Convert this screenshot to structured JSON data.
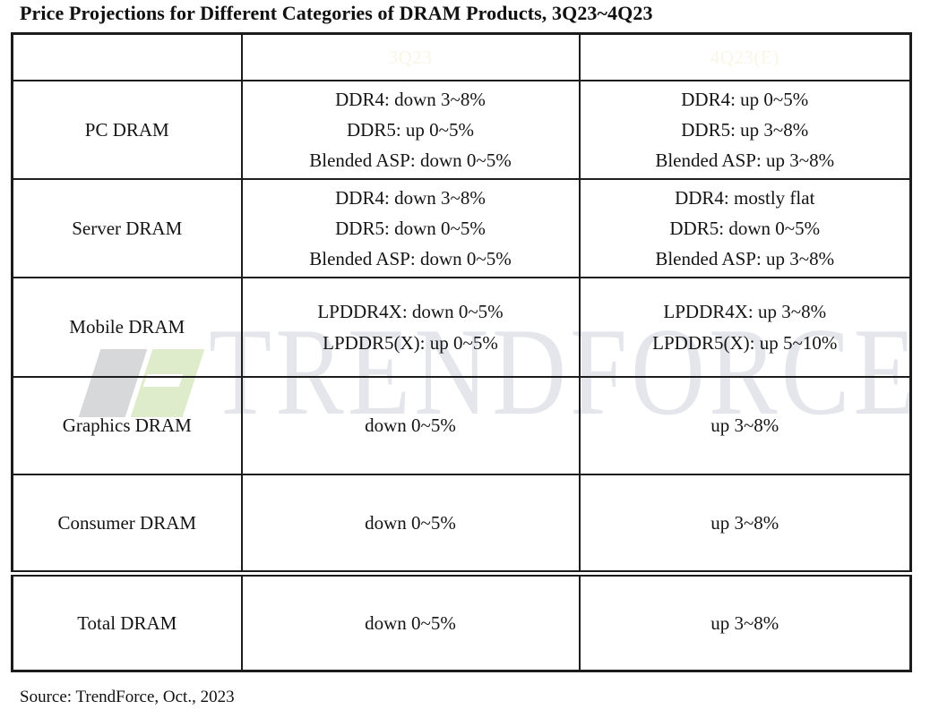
{
  "title": "Price Projections for Different Categories of DRAM Products, 3Q23~4Q23",
  "watermark": {
    "text": "TRENDFORCE",
    "logo": "trendforce-logo"
  },
  "colors": {
    "header_bg": "#76B629",
    "header_text": "#FAF6E6",
    "border": "#1C1C1C",
    "watermark_text": "#E4E6EC",
    "watermark_logo_green": "#DFECCB",
    "watermark_logo_gray": "#D7D8DA"
  },
  "chart_data": {
    "type": "table",
    "title": "Price Projections for Different Categories of DRAM Products, 3Q23~4Q23",
    "columns": [
      "",
      "3Q23",
      "4Q23(E)"
    ],
    "rows": [
      {
        "category": "PC DRAM",
        "q3": "DDR4: down 3~8%\nDDR5: up 0~5%\nBlended ASP: down 0~5%",
        "q4": "DDR4: up 0~5%\nDDR5: up 3~8%\nBlended ASP: up 3~8%"
      },
      {
        "category": "Server DRAM",
        "q3": "DDR4: down 3~8%\nDDR5: down 0~5%\nBlended ASP: down 0~5%",
        "q4": "DDR4: mostly flat\nDDR5: down 0~5%\nBlended ASP: up 3~8%"
      },
      {
        "category": "Mobile DRAM",
        "q3": "LPDDR4X: down 0~5%\nLPDDR5(X): up 0~5%",
        "q4": "LPDDR4X: up 3~8%\nLPDDR5(X): up 5~10%"
      },
      {
        "category": "Graphics DRAM",
        "q3": "down 0~5%",
        "q4": "up 3~8%"
      },
      {
        "category": "Consumer DRAM",
        "q3": "down 0~5%",
        "q4": "up 3~8%"
      },
      {
        "category": "Total DRAM",
        "q3": "down 0~5%",
        "q4": "up 3~8%"
      }
    ],
    "source": "Source: TrendForce, Oct., 2023",
    "legend": "none",
    "grid": "full table borders"
  }
}
